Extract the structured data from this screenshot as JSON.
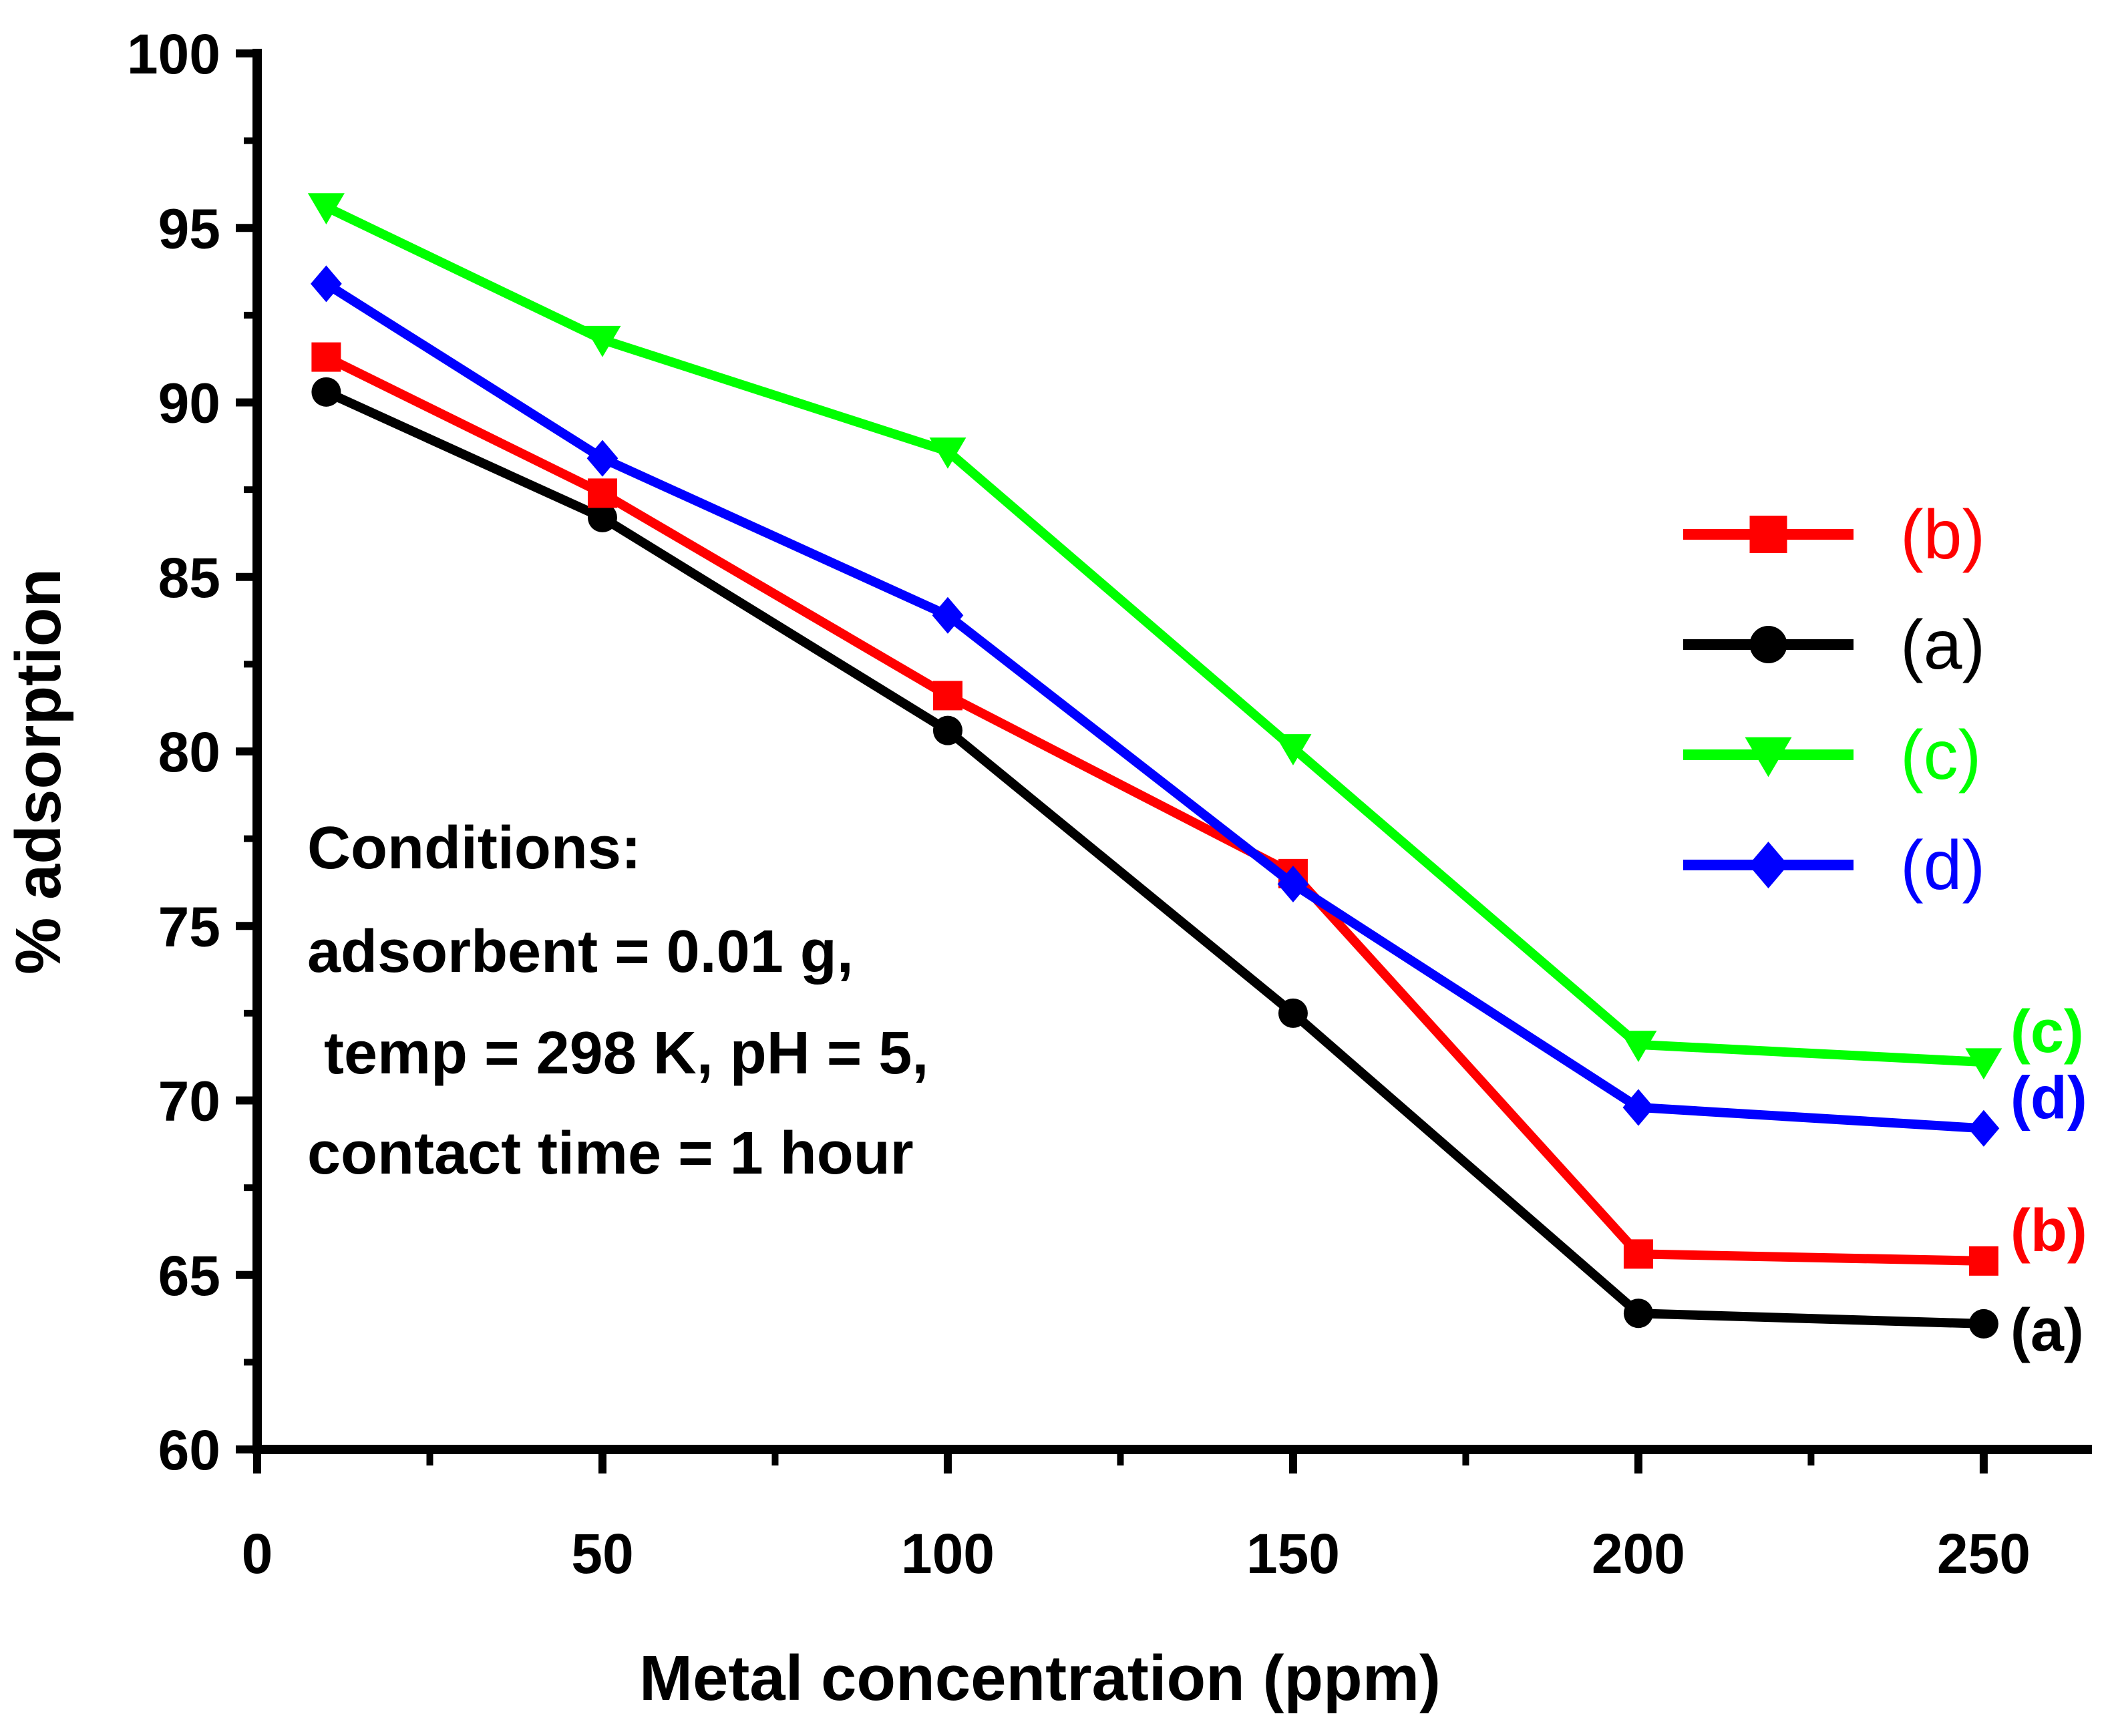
{
  "chart_data": {
    "type": "line",
    "title": "",
    "xlabel": "Metal concentration (ppm)",
    "ylabel": "% adsorption",
    "xlim": [
      0,
      265
    ],
    "ylim": [
      60,
      100
    ],
    "xticks": [
      "0",
      "50",
      "100",
      "150",
      "200",
      "250"
    ],
    "yticks": [
      "60",
      "65",
      "70",
      "75",
      "80",
      "85",
      "90",
      "95",
      "100"
    ],
    "x": [
      10,
      50,
      100,
      150,
      200,
      250
    ],
    "series": [
      {
        "name": "(b)",
        "color": "#ff0000",
        "marker": "square",
        "values": [
          91.3,
          87.4,
          81.6,
          76.5,
          65.6,
          65.4
        ]
      },
      {
        "name": "(a)",
        "color": "#000000",
        "marker": "circle",
        "values": [
          90.3,
          86.7,
          80.6,
          72.5,
          63.9,
          63.6
        ]
      },
      {
        "name": "(c)",
        "color": "#00ff00",
        "marker": "triangle-down",
        "values": [
          95.6,
          91.8,
          88.6,
          80.1,
          71.6,
          71.1
        ]
      },
      {
        "name": "(d)",
        "color": "#0000ff",
        "marker": "diamond",
        "values": [
          93.4,
          88.4,
          83.9,
          76.2,
          69.8,
          69.2
        ]
      }
    ],
    "legend": {
      "placement": "right",
      "entries": [
        "(b)",
        "(a)",
        "(c)",
        "(d)"
      ]
    },
    "end_labels": [
      "(c)",
      "(d)",
      "(b)",
      "(a)"
    ],
    "annotation": {
      "lines": [
        "Conditions:",
        "adsorbent = 0.01 g,",
        " temp = 298 K, pH = 5,",
        "contact time = 1 hour"
      ]
    }
  }
}
